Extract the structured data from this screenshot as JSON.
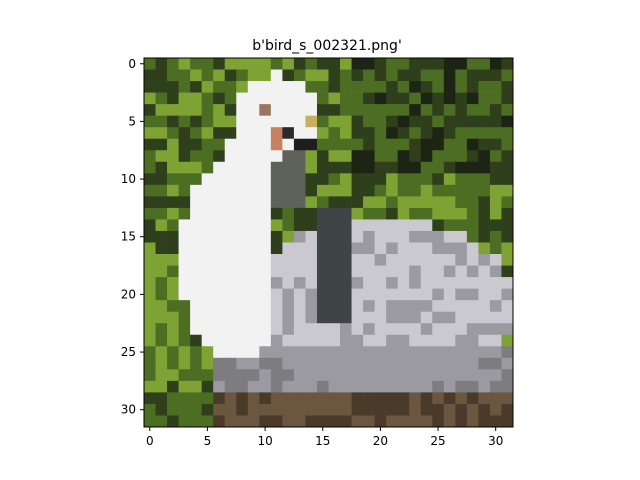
{
  "chart_data": {
    "type": "heatmap",
    "title": "b'bird_s_002321.png'",
    "xlabel": "",
    "ylabel": "",
    "grid": false,
    "image_size": [
      32,
      32
    ],
    "xlim": [
      -0.5,
      31.5
    ],
    "ylim": [
      31.5,
      -0.5
    ],
    "x_ticks": [
      0,
      5,
      10,
      15,
      20,
      25,
      30
    ],
    "y_ticks": [
      0,
      5,
      10,
      15,
      20,
      25,
      30
    ],
    "subject": "white and grey bird resting on green foliage, pixelated 32x32 image",
    "palette": {
      "foliage_dark": "#2f3f1c",
      "foliage_mid": "#4c6e22",
      "foliage_light": "#7ea334",
      "bird_white": "#f2f2f2",
      "bird_light_grey": "#c9c9cf",
      "bird_grey": "#9a9aa0",
      "bird_shadow": "#5f6258",
      "beak_orange": "#c98060",
      "ground_brown": "#4a3a2a"
    }
  }
}
